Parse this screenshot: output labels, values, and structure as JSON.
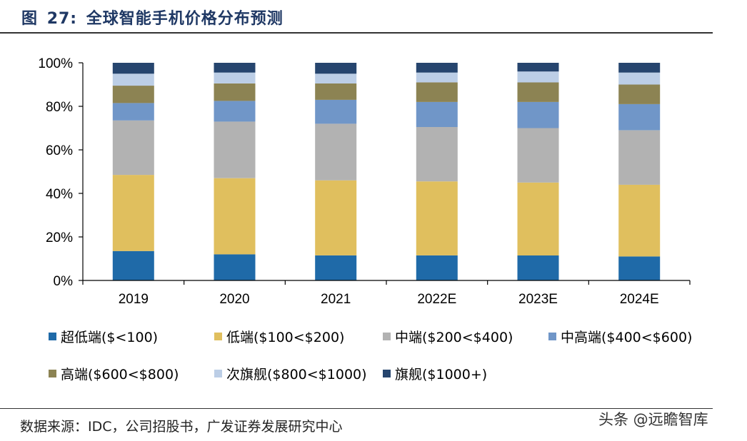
{
  "figure": {
    "label": "图",
    "number": "27:",
    "title": "全球智能手机价格分布预测"
  },
  "chart_data": {
    "type": "bar",
    "stacked": true,
    "categories": [
      "2019",
      "2020",
      "2021",
      "2022E",
      "2023E",
      "2024E"
    ],
    "ylim": [
      0,
      100
    ],
    "yticks": [
      "0%",
      "20%",
      "40%",
      "60%",
      "80%",
      "100%"
    ],
    "legend_position": "bottom",
    "grid": false,
    "series": [
      {
        "name": "超低端($<100)",
        "color": "#1f6aa8",
        "values": [
          13.5,
          12,
          11.5,
          11.5,
          11.5,
          11
        ]
      },
      {
        "name": "低端($100<$200)",
        "color": "#e0bf5e",
        "values": [
          35,
          35,
          34.5,
          34,
          33.5,
          33
        ]
      },
      {
        "name": "中端($200<$400)",
        "color": "#b2b2b2",
        "values": [
          25,
          26,
          26,
          25,
          25,
          25
        ]
      },
      {
        "name": "中高端($400<$600)",
        "color": "#7096c8",
        "values": [
          8,
          9.5,
          11,
          11.5,
          12,
          12
        ]
      },
      {
        "name": "高端($600<$800)",
        "color": "#8c8353",
        "values": [
          8,
          8,
          7.5,
          9,
          9,
          9
        ]
      },
      {
        "name": "次旗舰($800<$1000)",
        "color": "#bccee6",
        "values": [
          5.5,
          5,
          4.5,
          4.5,
          5,
          5.5
        ]
      },
      {
        "name": "旗舰($1000+)",
        "color": "#26456e",
        "values": [
          5,
          4.5,
          5,
          4.5,
          4,
          4.5
        ]
      }
    ]
  },
  "footer": {
    "source": "数据来源：IDC，公司招股书，广发证券发展研究中心",
    "watermark": "头条 @远瞻智库"
  }
}
